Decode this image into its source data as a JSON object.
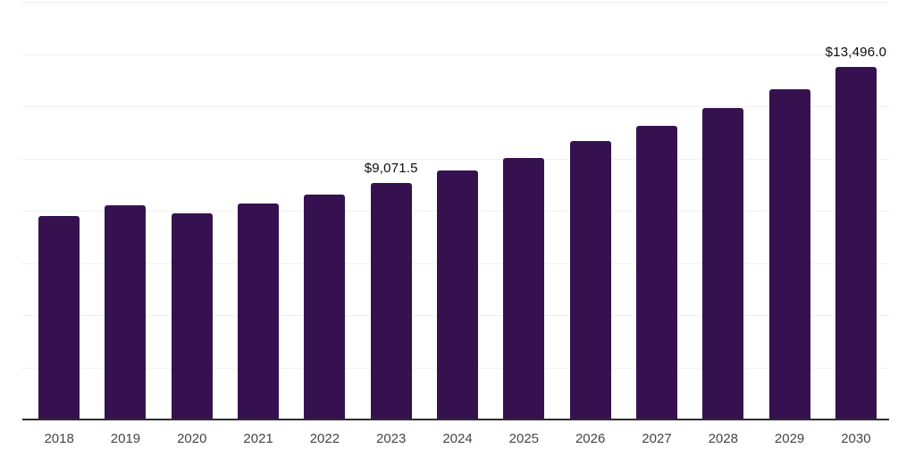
{
  "chart_data": {
    "type": "bar",
    "title": "",
    "xlabel": "",
    "ylabel": "",
    "ylim": [
      0,
      16000
    ],
    "grid_step": 2000,
    "grid": true,
    "legend": false,
    "y_axis_labels_visible": false,
    "bar_color": "#35124f",
    "gridline_color": "#f0f0f0",
    "baseline_color": "#2e2e2e",
    "categories": [
      "2018",
      "2019",
      "2020",
      "2021",
      "2022",
      "2023",
      "2024",
      "2025",
      "2026",
      "2027",
      "2028",
      "2029",
      "2030"
    ],
    "values": [
      7780,
      8220,
      7915,
      8290,
      8600,
      9071.5,
      9550,
      10030,
      10670,
      11250,
      11930,
      12650,
      13496
    ],
    "data_labels": [
      "",
      "",
      "",
      "",
      "",
      "$9,071.5",
      "",
      "",
      "",
      "",
      "",
      "",
      "$13,496.0"
    ]
  }
}
